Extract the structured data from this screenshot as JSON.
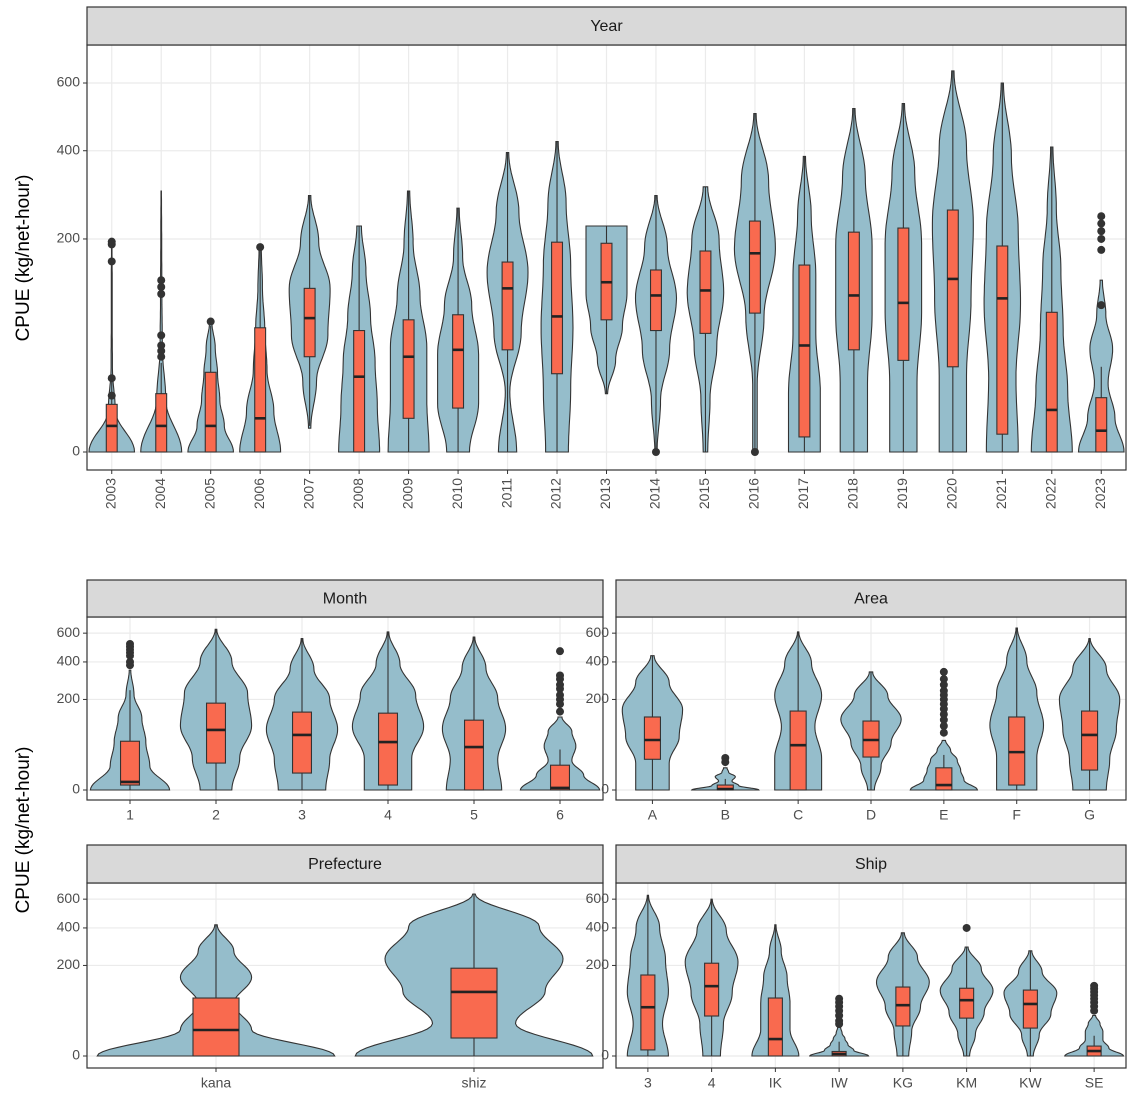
{
  "chart_data": [
    {
      "type": "violin",
      "title": "Year",
      "ylabel": "CPUE (kg/net-hour)",
      "yscale": "sqrt",
      "ylim": [
        0,
        730
      ],
      "yticks": [
        0,
        200,
        400,
        600
      ],
      "grid": true,
      "violin_color": "#95bdcb",
      "box_color": "#f96a4f",
      "categories": [
        "2003",
        "2004",
        "2005",
        "2006",
        "2007",
        "2008",
        "2009",
        "2010",
        "2011",
        "2012",
        "2013",
        "2014",
        "2015",
        "2016",
        "2017",
        "2018",
        "2019",
        "2020",
        "2021",
        "2022",
        "2023"
      ],
      "violins": [
        {
          "range": [
            0,
            195
          ],
          "density": [
            1,
            0.15,
            0.03,
            0.02,
            0.02,
            0.01
          ],
          "box": [
            0,
            0,
            3,
            10,
            22
          ],
          "outliers": [
            195,
            190,
            160,
            24,
            14
          ]
        },
        {
          "range": [
            0,
            300
          ],
          "density": [
            0.9,
            0.2,
            0.05,
            0.03,
            0.02,
            0.01
          ],
          "box": [
            0,
            0,
            3,
            15,
            35
          ],
          "outliers": [
            130,
            120,
            110,
            60,
            50,
            45,
            40
          ]
        },
        {
          "range": [
            0,
            75
          ],
          "density": [
            1,
            0.6,
            0.4,
            0.3,
            0.2,
            0.05
          ],
          "box": [
            0,
            0,
            3,
            28,
            70
          ],
          "outliers": [
            75
          ]
        },
        {
          "range": [
            0,
            185
          ],
          "density": [
            0.9,
            0.6,
            0.3,
            0.2,
            0.1,
            0.05
          ],
          "box": [
            0,
            0,
            5,
            68,
            180
          ],
          "outliers": [
            185
          ]
        },
        {
          "range": [
            2.5,
            290
          ],
          "density": [
            0.05,
            0.3,
            0.8,
            0.9,
            0.4,
            0.05
          ],
          "box": [
            3,
            40,
            79,
            118,
            290
          ],
          "outliers": []
        },
        {
          "range": [
            0,
            225
          ],
          "density": [
            0.9,
            0.8,
            0.7,
            0.5,
            0.3,
            0.1
          ],
          "box": [
            0,
            0,
            25,
            65,
            225
          ],
          "outliers": []
        },
        {
          "range": [
            0,
            300
          ],
          "density": [
            0.9,
            0.8,
            0.8,
            0.5,
            0.2,
            0.05
          ],
          "box": [
            0,
            5,
            40,
            77,
            300
          ],
          "outliers": []
        },
        {
          "range": [
            0,
            262
          ],
          "density": [
            0.5,
            0.9,
            0.9,
            0.6,
            0.2,
            0.05
          ],
          "box": [
            0,
            8.5,
            46,
            83,
            262
          ],
          "outliers": []
        },
        {
          "range": [
            0,
            395
          ],
          "density": [
            0.4,
            0.1,
            0.6,
            0.9,
            0.5,
            0.05
          ],
          "box": [
            0,
            46,
            118,
            159,
            395
          ],
          "outliers": []
        },
        {
          "range": [
            0,
            425
          ],
          "density": [
            0.5,
            0.6,
            0.7,
            0.6,
            0.4,
            0.05
          ],
          "box": [
            0,
            27,
            81,
            194,
            425
          ],
          "outliers": []
        },
        {
          "range": [
            15,
            225
          ],
          "density": [
            0.05,
            0.4,
            0.7,
            0.9,
            0.9,
            0.9
          ],
          "box": [
            15,
            77,
            127,
            192,
            225
          ],
          "outliers": []
        },
        {
          "range": [
            0,
            290
          ],
          "density": [
            0.05,
            0.2,
            0.6,
            0.9,
            0.5,
            0.05
          ],
          "box": [
            0,
            65,
            108,
            146,
            290
          ],
          "outliers": [
            0
          ]
        },
        {
          "range": [
            0,
            310
          ],
          "density": [
            0.1,
            0.2,
            0.5,
            0.8,
            0.6,
            0.1
          ],
          "box": [
            0,
            62,
            115,
            178,
            310
          ],
          "outliers": []
        },
        {
          "range": [
            0,
            505
          ],
          "density": [
            0.1,
            0.1,
            0.4,
            0.9,
            0.6,
            0.05
          ],
          "box": [
            0,
            85,
            174,
            235,
            505
          ],
          "outliers": [
            0
          ]
        },
        {
          "range": [
            0,
            385
          ],
          "density": [
            0.7,
            0.7,
            0.5,
            0.5,
            0.3,
            0.05
          ],
          "box": [
            0,
            1,
            50,
            154,
            385
          ],
          "outliers": []
        },
        {
          "range": [
            0,
            520
          ],
          "density": [
            0.6,
            0.6,
            0.8,
            0.8,
            0.5,
            0.05
          ],
          "box": [
            0,
            46,
            108,
            213,
            520
          ],
          "outliers": []
        },
        {
          "range": [
            0,
            535
          ],
          "density": [
            0.6,
            0.6,
            0.8,
            0.8,
            0.5,
            0.05
          ],
          "box": [
            0,
            37,
            98,
            221,
            535
          ],
          "outliers": []
        },
        {
          "range": [
            0,
            640
          ],
          "density": [
            0.6,
            0.6,
            0.8,
            0.9,
            0.6,
            0.05
          ],
          "box": [
            0,
            32,
            132,
            258,
            640
          ],
          "outliers": []
        },
        {
          "range": [
            0,
            600
          ],
          "density": [
            0.7,
            0.6,
            0.8,
            0.7,
            0.4,
            0.05
          ],
          "box": [
            0,
            1.4,
            104,
            187,
            600
          ],
          "outliers": []
        },
        {
          "range": [
            0,
            410
          ],
          "density": [
            0.9,
            0.7,
            0.5,
            0.4,
            0.2,
            0.05
          ],
          "box": [
            0,
            0,
            7.8,
            86,
            410
          ],
          "outliers": []
        },
        {
          "range": [
            0,
            130
          ],
          "density": [
            1,
            0.6,
            0.3,
            0.5,
            0.2,
            0.05
          ],
          "box": [
            0,
            0,
            2,
            13,
            32
          ],
          "outliers": [
            245,
            230,
            215,
            200,
            180,
            95
          ]
        }
      ]
    },
    {
      "type": "violin",
      "title": "Month",
      "ylabel": "CPUE (kg/net-hour)",
      "yscale": "sqrt",
      "ylim": [
        0,
        730
      ],
      "yticks": [
        0,
        200,
        400,
        600
      ],
      "grid": true,
      "violin_color": "#95bdcb",
      "box_color": "#f96a4f",
      "categories": [
        "1",
        "2",
        "3",
        "4",
        "5",
        "6"
      ],
      "violins": [
        {
          "range": [
            0,
            350
          ],
          "density": [
            1,
            0.5,
            0.4,
            0.3,
            0.1,
            0.02
          ],
          "box": [
            0,
            0.6,
            1.6,
            58,
            243
          ],
          "outliers": [
            520,
            500,
            480,
            460,
            440,
            400,
            380
          ]
        },
        {
          "range": [
            0,
            630
          ],
          "density": [
            0.4,
            0.6,
            0.9,
            0.8,
            0.4,
            0.02
          ],
          "box": [
            0,
            17.7,
            88,
            184,
            630
          ],
          "outliers": []
        },
        {
          "range": [
            0,
            560
          ],
          "density": [
            0.6,
            0.7,
            0.9,
            0.7,
            0.3,
            0.02
          ],
          "box": [
            0,
            7,
            74,
            148,
            560
          ],
          "outliers": []
        },
        {
          "range": [
            0,
            610
          ],
          "density": [
            0.6,
            0.6,
            0.9,
            0.7,
            0.3,
            0.02
          ],
          "box": [
            0,
            0.6,
            56,
            144,
            610
          ],
          "outliers": []
        },
        {
          "range": [
            0,
            570
          ],
          "density": [
            0.7,
            0.6,
            0.8,
            0.6,
            0.3,
            0.02
          ],
          "box": [
            0,
            0,
            45,
            119,
            570
          ],
          "outliers": []
        },
        {
          "range": [
            0,
            130
          ],
          "density": [
            1,
            0.6,
            0.3,
            0.4,
            0.3,
            0.05
          ],
          "box": [
            0,
            0,
            0.1,
            15,
            40
          ],
          "outliers": [
            470,
            320,
            300,
            270,
            250,
            220,
            200,
            180,
            150
          ]
        }
      ]
    },
    {
      "type": "violin",
      "title": "Area",
      "yscale": "sqrt",
      "ylim": [
        0,
        730
      ],
      "yticks": [
        0,
        200,
        400,
        600
      ],
      "grid": true,
      "violin_color": "#95bdcb",
      "box_color": "#f96a4f",
      "categories": [
        "A",
        "B",
        "C",
        "D",
        "E",
        "F",
        "G"
      ],
      "violins": [
        {
          "range": [
            0,
            440
          ],
          "density": [
            0.5,
            0.5,
            0.8,
            0.9,
            0.5,
            0.05
          ],
          "box": [
            0,
            23,
            61,
            130,
            440
          ],
          "outliers": []
        },
        {
          "range": [
            0,
            12
          ],
          "density": [
            1,
            0.4,
            0.2,
            0.3,
            0.1,
            0.05
          ],
          "box": [
            0,
            0,
            0.02,
            0.6,
            3
          ],
          "outliers": [
            25,
            19
          ]
        },
        {
          "range": [
            0,
            610
          ],
          "density": [
            0.7,
            0.7,
            0.5,
            0.7,
            0.4,
            0.02
          ],
          "box": [
            0,
            0,
            49,
            152,
            610
          ],
          "outliers": []
        },
        {
          "range": [
            0,
            340
          ],
          "density": [
            0.1,
            0.3,
            0.6,
            0.9,
            0.5,
            0.05
          ],
          "box": [
            0,
            26.5,
            61,
            116,
            340
          ],
          "outliers": []
        },
        {
          "range": [
            0,
            60
          ],
          "density": [
            1,
            0.6,
            0.5,
            0.4,
            0.2,
            0.05
          ],
          "box": [
            0,
            0,
            0.6,
            12,
            30
          ],
          "outliers": [
            340,
            300,
            270,
            240,
            220,
            200,
            180,
            160,
            140,
            120,
            100,
            80
          ]
        },
        {
          "range": [
            0,
            640
          ],
          "density": [
            0.6,
            0.6,
            0.8,
            0.6,
            0.3,
            0.02
          ],
          "box": [
            0,
            0.6,
            35,
            130,
            640
          ],
          "outliers": []
        },
        {
          "range": [
            0,
            560
          ],
          "density": [
            0.5,
            0.6,
            0.8,
            0.9,
            0.5,
            0.02
          ],
          "box": [
            0,
            9.7,
            74,
            152,
            560
          ],
          "outliers": []
        }
      ]
    },
    {
      "type": "violin",
      "title": "Prefecture",
      "yscale": "sqrt",
      "ylim": [
        0,
        730
      ],
      "yticks": [
        0,
        200,
        400,
        600
      ],
      "grid": true,
      "violin_color": "#95bdcb",
      "box_color": "#f96a4f",
      "categories": [
        "kana",
        "shiz"
      ],
      "violins": [
        {
          "range": [
            0,
            420
          ],
          "density": [
            1,
            0.3,
            0.15,
            0.3,
            0.15,
            0.01
          ],
          "box": [
            0,
            0,
            16.5,
            82,
            420
          ],
          "outliers": []
        },
        {
          "range": [
            0,
            640
          ],
          "density": [
            1,
            0.35,
            0.6,
            0.75,
            0.55,
            0.01
          ],
          "box": [
            0,
            7.9,
            100,
            188,
            640
          ],
          "outliers": []
        }
      ]
    },
    {
      "type": "violin",
      "title": "Ship",
      "yscale": "sqrt",
      "ylim": [
        0,
        730
      ],
      "yticks": [
        0,
        200,
        400,
        600
      ],
      "grid": true,
      "violin_color": "#95bdcb",
      "box_color": "#f96a4f",
      "categories": [
        "3",
        "4",
        "IK",
        "IW",
        "KG",
        "KM",
        "KW",
        "SE"
      ],
      "violins": [
        {
          "range": [
            0,
            630
          ],
          "density": [
            0.7,
            0.5,
            0.7,
            0.6,
            0.4,
            0.02
          ],
          "box": [
            0,
            0.9,
            58,
            160,
            630
          ],
          "outliers": []
        },
        {
          "range": [
            0,
            600
          ],
          "density": [
            0.3,
            0.4,
            0.7,
            0.9,
            0.5,
            0.02
          ],
          "box": [
            0,
            39,
            119,
            210,
            600
          ],
          "outliers": []
        },
        {
          "range": [
            0,
            420
          ],
          "density": [
            0.8,
            0.5,
            0.5,
            0.4,
            0.2,
            0.02
          ],
          "box": [
            0,
            0,
            7,
            82,
            420
          ],
          "outliers": []
        },
        {
          "range": [
            0,
            20
          ],
          "density": [
            1,
            0.5,
            0.3,
            0.2,
            0.1,
            0.05
          ],
          "box": [
            0,
            0,
            0.1,
            0.5,
            5
          ],
          "outliers": [
            80,
            70,
            60,
            50,
            40,
            30,
            25
          ]
        },
        {
          "range": [
            0,
            370
          ],
          "density": [
            0.2,
            0.3,
            0.6,
            0.9,
            0.5,
            0.05
          ],
          "box": [
            0,
            22,
            63,
            116,
            370
          ],
          "outliers": []
        },
        {
          "range": [
            0,
            290
          ],
          "density": [
            0.1,
            0.3,
            0.6,
            0.9,
            0.5,
            0.05
          ],
          "box": [
            0,
            35,
            76,
            112,
            290
          ],
          "outliers": [
            400
          ]
        },
        {
          "range": [
            0,
            270
          ],
          "density": [
            0.1,
            0.3,
            0.7,
            0.9,
            0.4,
            0.05
          ],
          "box": [
            0,
            19,
            66,
            106,
            270
          ],
          "outliers": []
        },
        {
          "range": [
            0,
            40
          ],
          "density": [
            1,
            0.5,
            0.3,
            0.3,
            0.2,
            0.05
          ],
          "box": [
            0,
            0,
            0.6,
            2.4,
            10
          ],
          "outliers": [
            120,
            110,
            100,
            90,
            80,
            70,
            60,
            50
          ]
        }
      ]
    }
  ]
}
